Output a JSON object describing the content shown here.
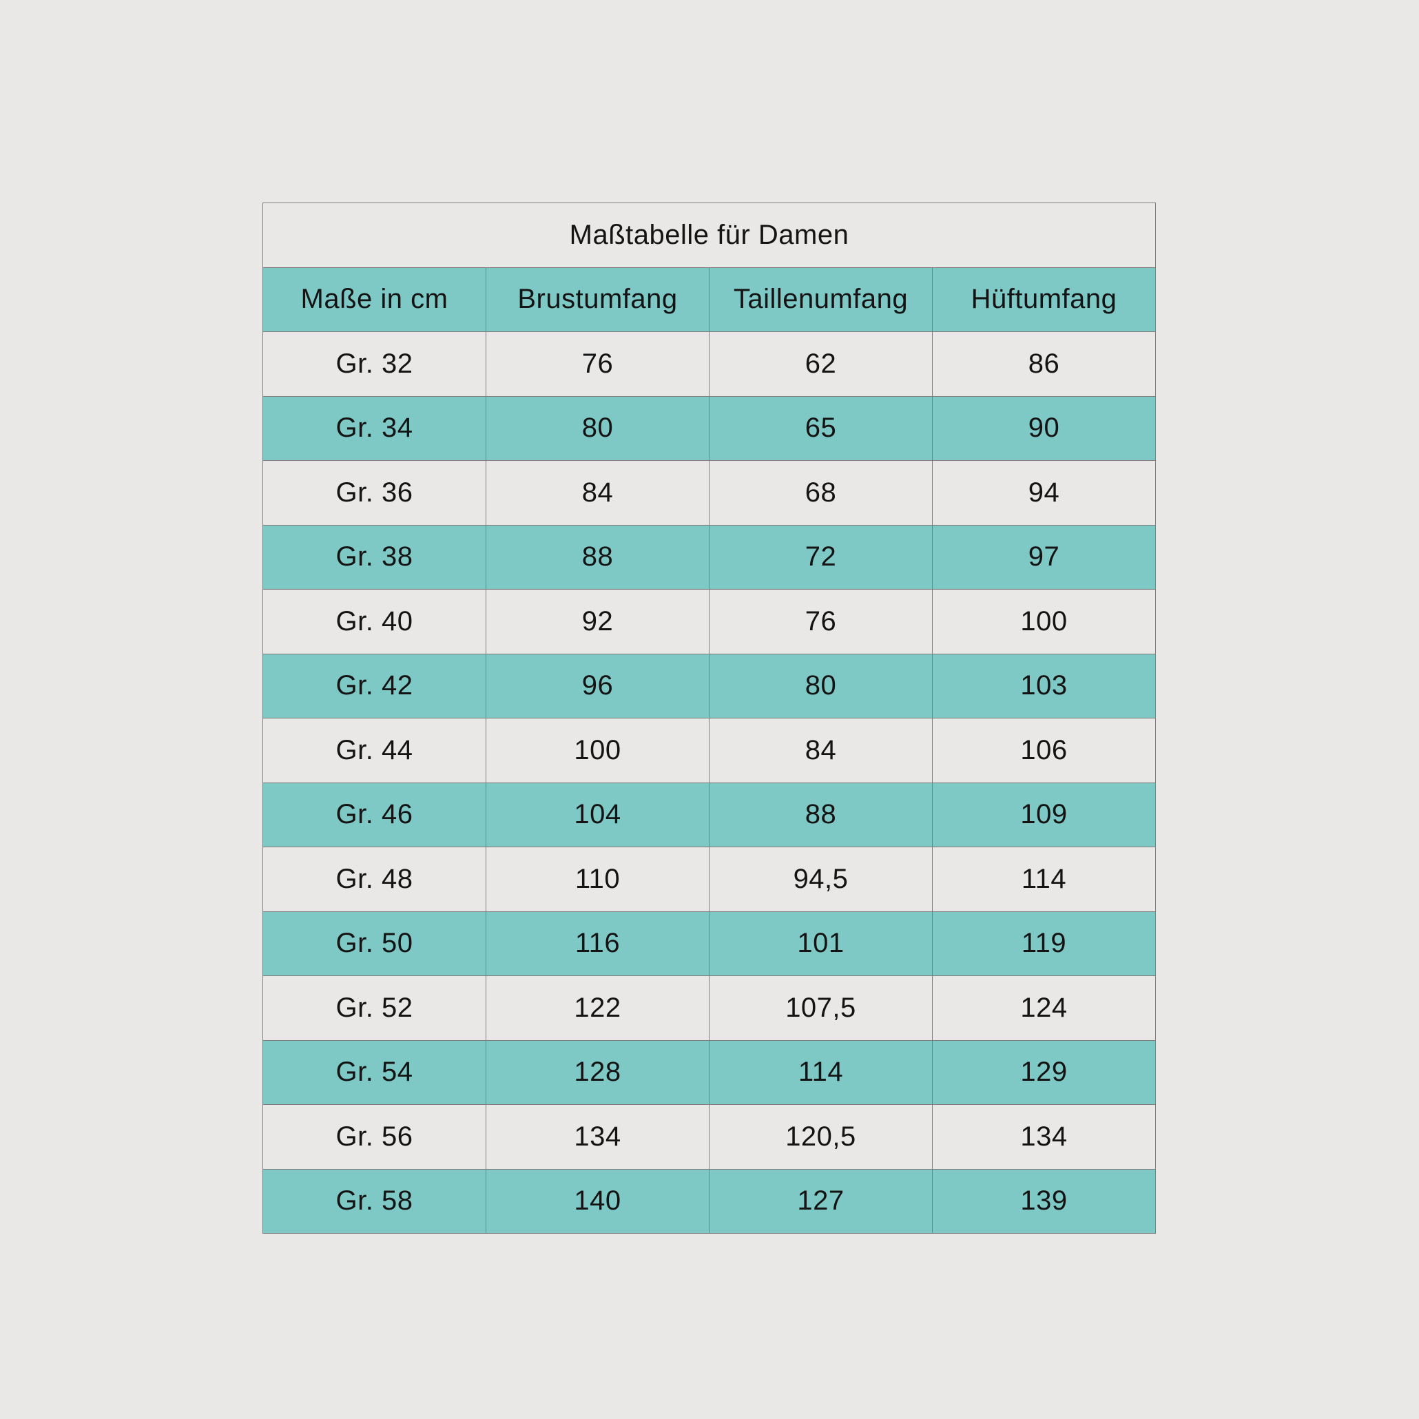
{
  "colors": {
    "page_bg": "#EAE8E7",
    "row_light": "#EAE8E7",
    "accent_teal": "#7EC8C5",
    "border": "#7F7D7C",
    "text": "#141414"
  },
  "chart_data": {
    "type": "table",
    "title": "Maßtabelle für Damen",
    "columns": [
      "Maße in cm",
      "Brustumfang",
      "Taillenumfang",
      "Hüftumfang"
    ],
    "rows": [
      [
        "Gr. 32",
        "76",
        "62",
        "86"
      ],
      [
        "Gr. 34",
        "80",
        "65",
        "90"
      ],
      [
        "Gr. 36",
        "84",
        "68",
        "94"
      ],
      [
        "Gr. 38",
        "88",
        "72",
        "97"
      ],
      [
        "Gr. 40",
        "92",
        "76",
        "100"
      ],
      [
        "Gr. 42",
        "96",
        "80",
        "103"
      ],
      [
        "Gr. 44",
        "100",
        "84",
        "106"
      ],
      [
        "Gr. 46",
        "104",
        "88",
        "109"
      ],
      [
        "Gr. 48",
        "110",
        "94,5",
        "114"
      ],
      [
        "Gr. 50",
        "116",
        "101",
        "119"
      ],
      [
        "Gr. 52",
        "122",
        "107,5",
        "124"
      ],
      [
        "Gr. 54",
        "128",
        "114",
        "129"
      ],
      [
        "Gr. 56",
        "134",
        "120,5",
        "134"
      ],
      [
        "Gr. 58",
        "140",
        "127",
        "139"
      ]
    ]
  }
}
